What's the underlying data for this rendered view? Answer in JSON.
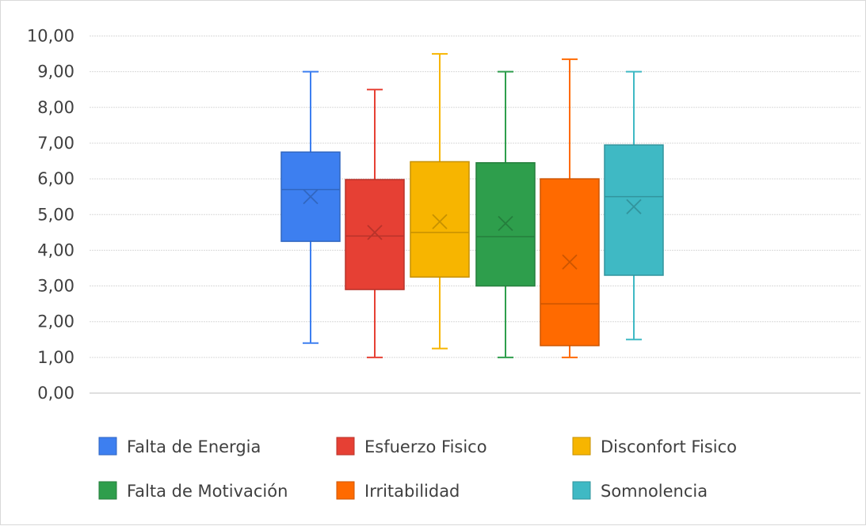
{
  "chart_data": {
    "type": "box",
    "ylim": [
      0,
      10
    ],
    "y_ticks": [
      "0,00",
      "1,00",
      "2,00",
      "3,00",
      "4,00",
      "5,00",
      "6,00",
      "7,00",
      "8,00",
      "9,00",
      "10,00"
    ],
    "grid": true,
    "legend_position": "bottom",
    "series": [
      {
        "name": "Falta de Energia",
        "color": "#3d7ff0",
        "min": 1.4,
        "q1": 4.25,
        "median": 5.7,
        "q3": 6.75,
        "max": 9.0,
        "mean": 5.5
      },
      {
        "name": "Esfuerzo Fisico",
        "color": "#e64034",
        "min": 1.0,
        "q1": 2.9,
        "median": 4.4,
        "q3": 5.98,
        "max": 8.5,
        "mean": 4.5
      },
      {
        "name": "Disconfort Fisico",
        "color": "#f7b500",
        "min": 1.25,
        "q1": 3.25,
        "median": 4.5,
        "q3": 6.48,
        "max": 9.5,
        "mean": 4.8
      },
      {
        "name": "Falta de Motivación",
        "color": "#2e9e4c",
        "min": 1.0,
        "q1": 3.0,
        "median": 4.38,
        "q3": 6.45,
        "max": 9.0,
        "mean": 4.75
      },
      {
        "name": "Irritabilidad",
        "color": "#ff6a00",
        "min": 1.0,
        "q1": 1.33,
        "median": 2.5,
        "q3": 6.0,
        "max": 9.35,
        "mean": 3.67
      },
      {
        "name": "Somnolencia",
        "color": "#3fb9c4",
        "min": 1.5,
        "q1": 3.3,
        "median": 5.5,
        "q3": 6.95,
        "max": 9.0,
        "mean": 5.22
      }
    ]
  }
}
